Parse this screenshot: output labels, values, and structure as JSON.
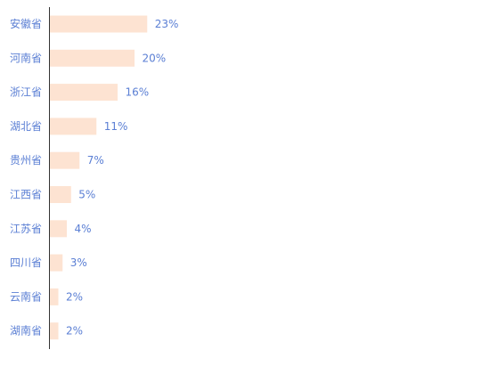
{
  "chart_data": {
    "type": "bar",
    "orientation": "horizontal",
    "categories": [
      "安徽省",
      "河南省",
      "浙江省",
      "湖北省",
      "贵州省",
      "江西省",
      "江苏省",
      "四川省",
      "云南省",
      "湖南省"
    ],
    "values": [
      23,
      20,
      16,
      11,
      7,
      5,
      4,
      3,
      2,
      2
    ],
    "value_labels": [
      "23%",
      "20%",
      "16%",
      "11%",
      "7%",
      "5%",
      "4%",
      "3%",
      "2%",
      "2%"
    ],
    "unit": "%",
    "xlim": [
      0,
      100
    ],
    "grid": false,
    "legend": "none",
    "colors": {
      "bar": "#fde3d2",
      "label": "#5b7fd4",
      "axis": "#333333"
    }
  }
}
